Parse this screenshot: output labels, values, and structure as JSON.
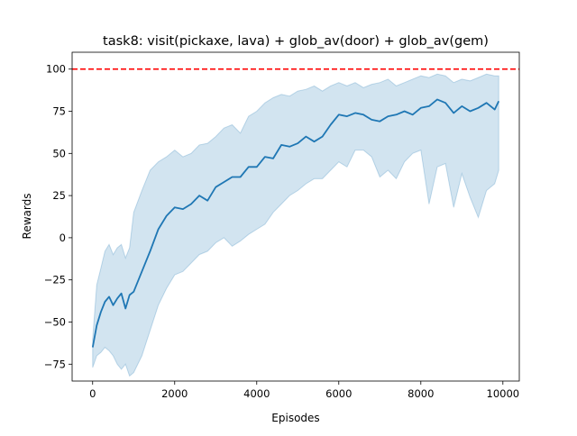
{
  "chart_data": {
    "type": "line",
    "title": "task8: visit(pickaxe, lava) + glob_av(door) + glob_av(gem)",
    "xlabel": "Episodes",
    "ylabel": "Rewards",
    "xlim": [
      -500,
      10400
    ],
    "ylim": [
      -85,
      110
    ],
    "xticks": [
      0,
      2000,
      4000,
      6000,
      8000,
      10000
    ],
    "yticks": [
      -75,
      -50,
      -25,
      0,
      25,
      50,
      75,
      100
    ],
    "grid": false,
    "reference_line": {
      "y": 100,
      "color": "#ff0000",
      "style": "dashed"
    },
    "series": [
      {
        "color": "#1f77b4",
        "band_color": "#1f77b4",
        "x": [
          0,
          100,
          200,
          300,
          400,
          500,
          600,
          700,
          800,
          900,
          1000,
          1200,
          1400,
          1600,
          1800,
          2000,
          2200,
          2400,
          2600,
          2800,
          3000,
          3200,
          3400,
          3600,
          3800,
          4000,
          4200,
          4400,
          4600,
          4800,
          5000,
          5200,
          5400,
          5600,
          5800,
          6000,
          6200,
          6400,
          6600,
          6800,
          7000,
          7200,
          7400,
          7600,
          7800,
          8000,
          8200,
          8400,
          8600,
          8800,
          9000,
          9200,
          9400,
          9600,
          9800,
          9900
        ],
        "mean": [
          -65,
          -52,
          -44,
          -38,
          -35,
          -40,
          -36,
          -33,
          -42,
          -34,
          -32,
          -20,
          -8,
          5,
          13,
          18,
          17,
          20,
          25,
          22,
          30,
          33,
          36,
          36,
          42,
          42,
          48,
          47,
          55,
          54,
          56,
          60,
          57,
          60,
          67,
          73,
          72,
          74,
          73,
          70,
          69,
          72,
          73,
          75,
          73,
          77,
          78,
          82,
          80,
          74,
          78,
          75,
          77,
          80,
          76,
          81
        ],
        "upper": [
          -60,
          -28,
          -18,
          -8,
          -4,
          -10,
          -6,
          -4,
          -12,
          -6,
          15,
          28,
          40,
          45,
          48,
          52,
          48,
          50,
          55,
          56,
          60,
          65,
          67,
          62,
          72,
          75,
          80,
          83,
          85,
          84,
          87,
          88,
          90,
          87,
          90,
          92,
          90,
          92,
          89,
          91,
          92,
          94,
          90,
          92,
          94,
          96,
          95,
          97,
          96,
          92,
          94,
          93,
          95,
          97,
          96,
          96
        ],
        "lower": [
          -77,
          -70,
          -68,
          -65,
          -67,
          -70,
          -75,
          -78,
          -75,
          -82,
          -80,
          -70,
          -55,
          -40,
          -30,
          -22,
          -20,
          -15,
          -10,
          -8,
          -3,
          0,
          -5,
          -2,
          2,
          5,
          8,
          15,
          20,
          25,
          28,
          32,
          35,
          35,
          40,
          45,
          42,
          52,
          52,
          48,
          36,
          40,
          35,
          45,
          50,
          52,
          20,
          42,
          44,
          18,
          38,
          24,
          12,
          28,
          32,
          40
        ]
      }
    ]
  }
}
